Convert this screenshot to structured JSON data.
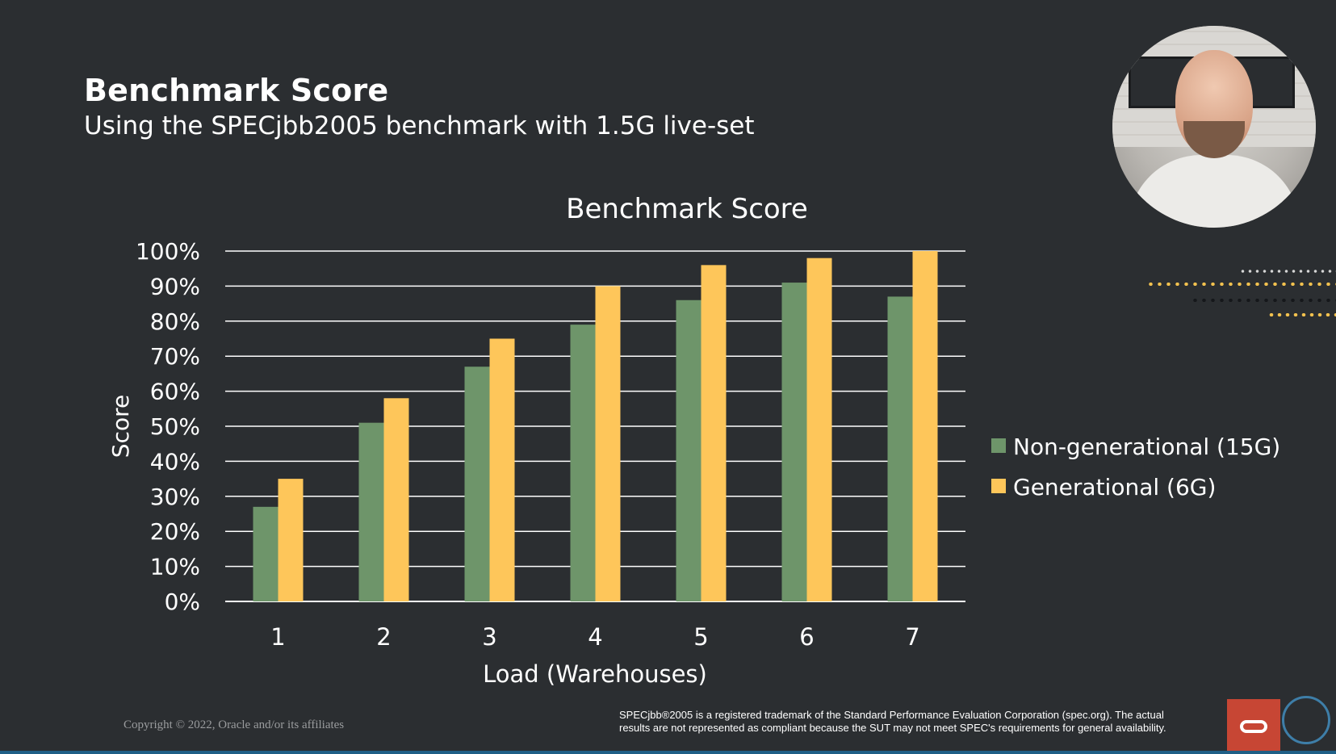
{
  "slide": {
    "title": "Benchmark Score",
    "subtitle": "Using the SPECjbb2005 benchmark with 1.5G live-set"
  },
  "chart_data": {
    "type": "bar",
    "title": "Benchmark Score",
    "xlabel": "Load (Warehouses)",
    "ylabel": "Score",
    "categories": [
      "1",
      "2",
      "3",
      "4",
      "5",
      "6",
      "7"
    ],
    "series": [
      {
        "name": "Non-generational (15G)",
        "color": "#6e956a",
        "values": [
          27,
          51,
          67,
          79,
          86,
          91,
          87
        ]
      },
      {
        "name": "Generational (6G)",
        "color": "#fec65a",
        "values": [
          35,
          58,
          75,
          90,
          96,
          98,
          100
        ]
      }
    ],
    "ylim": [
      0,
      100
    ],
    "yticks": [
      "0%",
      "10%",
      "20%",
      "30%",
      "40%",
      "50%",
      "60%",
      "70%",
      "80%",
      "90%",
      "100%"
    ],
    "grid": true,
    "legend_position": "right"
  },
  "footer": {
    "copyright": "Copyright © 2022, Oracle and/or its affiliates",
    "legal_line1": "SPECjbb®2005 is a registered trademark of the Standard Performance Evaluation Corporation (spec.org). The actual",
    "legal_line2": "results are not represented as compliant because the SUT may not meet SPEC's requirements for general availability."
  },
  "colors": {
    "background": "#2b2e31",
    "gridline": "#ffffff",
    "brand_red": "#c74634"
  },
  "icons": {
    "presenter": "presenter-webcam",
    "logo": "oracle-logo-icon",
    "decoration": "dot-pattern"
  }
}
